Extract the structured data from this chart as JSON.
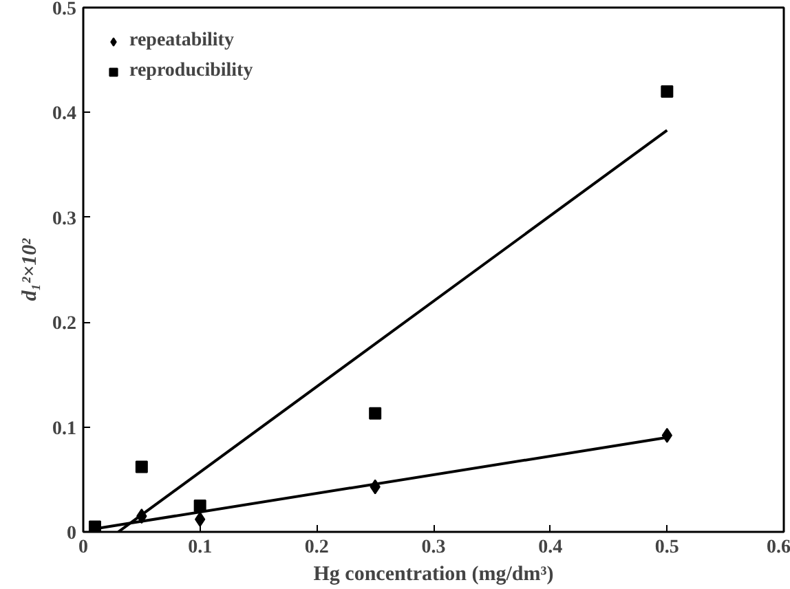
{
  "chart_data": {
    "type": "scatter",
    "xlabel": "Hg concentration (mg/dm³)",
    "ylabel": "d₁²×10²",
    "xlim": [
      0,
      0.6
    ],
    "ylim": [
      0,
      0.5
    ],
    "xticks": [
      0,
      0.1,
      0.2,
      0.3,
      0.4,
      0.5,
      0.6
    ],
    "yticks": [
      0,
      0.1,
      0.2,
      0.3,
      0.4,
      0.5
    ],
    "grid": false,
    "legend": "top left",
    "series": [
      {
        "name": "repeatability",
        "marker": "diamond",
        "color": "#000000",
        "x": [
          0.05,
          0.1,
          0.25,
          0.5
        ],
        "values": [
          0.015,
          0.012,
          0.043,
          0.092
        ]
      },
      {
        "name": "reproducibility",
        "marker": "square",
        "color": "#000000",
        "x": [
          0.01,
          0.05,
          0.1,
          0.25,
          0.5
        ],
        "values": [
          0.005,
          0.062,
          0.025,
          0.113,
          0.42
        ]
      },
      {
        "type": "line",
        "color": "#000000",
        "x": [
          0.01,
          0.5
        ],
        "values": [
          0.003,
          0.09
        ]
      },
      {
        "type": "line",
        "color": "#000000",
        "x": [
          0.03,
          0.5
        ],
        "values": [
          0.0,
          0.383
        ]
      }
    ]
  }
}
